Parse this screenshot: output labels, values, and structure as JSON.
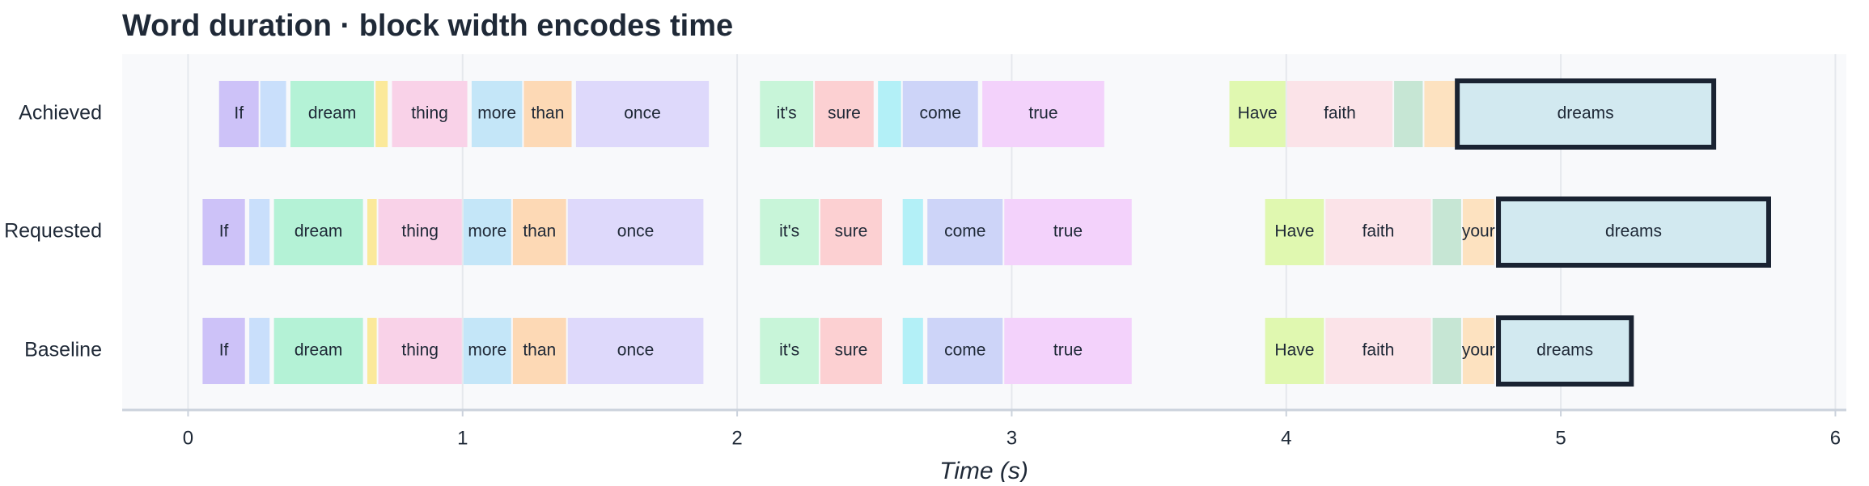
{
  "chart_data": {
    "type": "timeline",
    "title": "Word duration · block width encodes time",
    "xlabel": "Time (s)",
    "xlim": [
      -0.24,
      6.04
    ],
    "xticks": [
      0,
      1,
      2,
      3,
      4,
      5,
      6
    ],
    "grid": true,
    "colors": [
      "#cdc2f8",
      "#c9dffb",
      "#b4f2d6",
      "#fbe99a",
      "#f9d2e8",
      "#c4e6f8",
      "#fdd9b5",
      "#ded9fb",
      "#c8f5d9",
      "#fcd0d2",
      "#b3f0f7",
      "#cdd4f8",
      "#f3d2fb",
      "#e0f8b0",
      "#fbe3e8",
      "#c6e6d4",
      "#fde2c0",
      "#d2e9f0"
    ],
    "highlight_index": 17,
    "series": [
      {
        "name": "Achieved",
        "labels": [
          "If",
          null,
          "dream",
          null,
          "thing",
          "more",
          "than",
          "once",
          "it's",
          "sure",
          null,
          "come",
          "true",
          "Have",
          "faith",
          null,
          null,
          "dreams"
        ],
        "starts": [
          0.11,
          0.26,
          0.37,
          0.68,
          0.74,
          1.03,
          1.22,
          1.41,
          2.08,
          2.28,
          2.51,
          2.6,
          2.89,
          3.79,
          4.0,
          4.39,
          4.5,
          4.62
        ],
        "ends": [
          0.26,
          0.36,
          0.68,
          0.73,
          1.02,
          1.22,
          1.4,
          1.9,
          2.28,
          2.5,
          2.6,
          2.88,
          3.34,
          4.0,
          4.39,
          4.5,
          4.62,
          5.56
        ]
      },
      {
        "name": "Requested",
        "labels": [
          "If",
          null,
          "dream",
          null,
          "thing",
          "more",
          "than",
          "once",
          "it's",
          "sure",
          null,
          "come",
          "true",
          "Have",
          "faith",
          null,
          "your",
          "dreams"
        ],
        "starts": [
          0.05,
          0.22,
          0.31,
          0.65,
          0.69,
          1.0,
          1.18,
          1.38,
          2.08,
          2.3,
          2.6,
          2.69,
          2.97,
          3.92,
          4.14,
          4.53,
          4.64,
          4.77
        ],
        "ends": [
          0.21,
          0.3,
          0.64,
          0.69,
          1.0,
          1.18,
          1.38,
          1.88,
          2.3,
          2.53,
          2.68,
          2.97,
          3.44,
          4.14,
          4.53,
          4.64,
          4.76,
          5.76
        ]
      },
      {
        "name": "Baseline",
        "labels": [
          "If",
          null,
          "dream",
          null,
          "thing",
          "more",
          "than",
          "once",
          "it's",
          "sure",
          null,
          "come",
          "true",
          "Have",
          "faith",
          null,
          "your",
          "dreams"
        ],
        "starts": [
          0.05,
          0.22,
          0.31,
          0.65,
          0.69,
          1.0,
          1.18,
          1.38,
          2.08,
          2.3,
          2.6,
          2.69,
          2.97,
          3.92,
          4.14,
          4.53,
          4.64,
          4.77
        ],
        "ends": [
          0.21,
          0.3,
          0.64,
          0.69,
          1.0,
          1.18,
          1.38,
          1.88,
          2.3,
          2.53,
          2.68,
          2.97,
          3.44,
          4.14,
          4.53,
          4.64,
          4.76,
          5.26
        ]
      }
    ]
  }
}
